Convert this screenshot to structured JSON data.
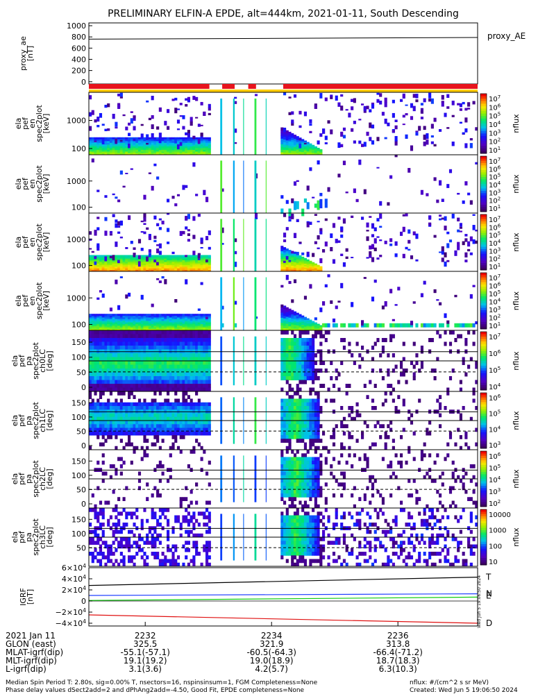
{
  "title": "PRELIMINARY ELFIN-A EPDE, alt=444km, 2021-01-11, South Descending",
  "colors": {
    "ae_line": "#000000",
    "status_red": "#e8141c",
    "status_yellow": "#ffcc00",
    "igrf_T": "#000000",
    "igrf_N": "#1f3fff",
    "igrf_E": "#11cc11",
    "igrf_D": "#e01010"
  },
  "footer": {
    "left_line1": "Median Spin Period T: 2.80s, sig=0.00% T, nsectors=16, nspinsinsum=1, FGM Completeness=None",
    "left_line2": "Phase delay values dSect2add=2 and dPhAng2add=-4.50, Good Fit, EPDE completeness=None",
    "right_line1": "nflux: #/(cm^2 s sr MeV)",
    "right_line2": "Created: Wed Jun  5 19:06:50 2024",
    "vertical": "Wed Jun  5 19:06:50 2024"
  },
  "chart_data": [
    {
      "id": "proxy_ae",
      "type": "line",
      "ylabel": "proxy_ae\n[nT]",
      "yticks": [
        "1000",
        "800",
        "600",
        "400",
        "200",
        "0"
      ],
      "ylim": [
        -40,
        1050
      ],
      "legend": "proxy_AE",
      "x_range": [
        0,
        1
      ],
      "series": [
        {
          "x": [
            0,
            1
          ],
          "y": [
            760,
            790
          ]
        }
      ]
    },
    {
      "id": "status_bar",
      "type": "table",
      "red_segments": [
        [
          0.0,
          0.31
        ],
        [
          0.343,
          0.375
        ],
        [
          0.41,
          0.43
        ],
        [
          0.5,
          1.0
        ]
      ],
      "yellow_band": true
    },
    {
      "id": "pef_en_1",
      "type": "heatmap",
      "ylabel": "ela\npef\nen\nspec2plot\n[keV]",
      "yticks": [
        "1000",
        "100"
      ],
      "colorbar": {
        "ticks": [
          "10^7",
          "10^6",
          "10^5",
          "10^4",
          "10^3",
          "10^2",
          "10^1"
        ],
        "label": "nflux"
      }
    },
    {
      "id": "pef_en_2",
      "type": "heatmap",
      "ylabel": "ela\npef\nen\nspec2plot\n[keV]",
      "yticks": [
        "1000",
        "100"
      ],
      "colorbar": {
        "ticks": [
          "10^7",
          "10^6",
          "10^5",
          "10^4",
          "10^3",
          "10^2",
          "10^1"
        ],
        "label": "nflux"
      }
    },
    {
      "id": "pef_en_3",
      "type": "heatmap",
      "ylabel": "ela\npef\nen\nspec2plot\n[keV]",
      "yticks": [
        "1000",
        "100"
      ],
      "colorbar": {
        "ticks": [
          "10^7",
          "10^6",
          "10^5",
          "10^4",
          "10^3",
          "10^2",
          "10^1"
        ],
        "label": "nflux"
      }
    },
    {
      "id": "pef_en_4",
      "type": "heatmap",
      "ylabel": "ela\npef\nen\nspec2plot\n[keV]",
      "yticks": [
        "1000",
        "100"
      ],
      "colorbar": {
        "ticks": [
          "10^7",
          "10^6",
          "10^5",
          "10^4",
          "10^3",
          "10^2",
          "10^1"
        ],
        "label": "nflux"
      }
    },
    {
      "id": "ch0",
      "type": "heatmap",
      "ylabel": "ela\npef\npa\nspec2plot\nch0LC\n[deg]",
      "yticks": [
        "150",
        "100",
        "50",
        "0"
      ],
      "colorbar": {
        "ticks": [
          "10^7",
          "10^6",
          "10^5",
          "10^4"
        ],
        "label": "nflux"
      }
    },
    {
      "id": "ch1",
      "type": "heatmap",
      "ylabel": "ela\npef\npa\nspec2plot\nch1LC\n[deg]",
      "yticks": [
        "150",
        "100",
        "50",
        "0"
      ],
      "colorbar": {
        "ticks": [
          "10^6",
          "10^5",
          "10^4",
          "10^3"
        ],
        "label": "nflux"
      }
    },
    {
      "id": "ch2",
      "type": "heatmap",
      "ylabel": "ela\npef\npa\nspec2plot\nch2LC\n[deg]",
      "yticks": [
        "150",
        "100",
        "50",
        "0"
      ],
      "colorbar": {
        "ticks": [
          "10^6",
          "10^5",
          "10^4",
          "10^3",
          "10^2"
        ],
        "label": "nflux"
      }
    },
    {
      "id": "ch3",
      "type": "heatmap",
      "ylabel": "ela\npef\npa\nspec2plot\nch3LC\n[deg]",
      "yticks": [
        "150",
        "100",
        "50"
      ],
      "colorbar": {
        "ticks": [
          "10000",
          "1000",
          "100",
          "10"
        ],
        "label": "nflux"
      }
    },
    {
      "id": "igrf",
      "type": "line",
      "ylabel": "IGRF\n[nT]",
      "yticks": [
        "6×10^4",
        "4×10^4",
        "2×10^4",
        "0",
        "−2×10^4",
        "−4×10^4"
      ],
      "ylim": [
        -45000,
        60000
      ],
      "x_range": [
        0,
        1
      ],
      "series": [
        {
          "name": "T",
          "x": [
            0,
            1
          ],
          "y": [
            28000,
            43000
          ]
        },
        {
          "name": "N",
          "x": [
            0,
            1
          ],
          "y": [
            10000,
            13000
          ]
        },
        {
          "name": "E",
          "x": [
            0,
            1
          ],
          "y": [
            1000,
            7000
          ]
        },
        {
          "name": "D",
          "x": [
            0,
            1
          ],
          "y": [
            -25000,
            -40000
          ]
        }
      ]
    },
    {
      "id": "orbit_table",
      "type": "table",
      "row_labels": [
        "2021 Jan 11",
        "GLON (east)",
        "MLAT-igrf(dip)",
        "MLT-igrf(dip)",
        "L-igrf(dip)"
      ],
      "columns": [
        {
          "tick": "2232",
          "values": [
            "325.5",
            "-55.1(-57.1)",
            "19.1(19.2)",
            "3.1(3.6)"
          ]
        },
        {
          "tick": "2234",
          "values": [
            "321.9",
            "-60.5(-64.3)",
            "19.0(18.9)",
            "4.2(5.7)"
          ]
        },
        {
          "tick": "2236",
          "values": [
            "313.8",
            "-66.4(-71.2)",
            "18.7(18.3)",
            "6.3(10.3)"
          ]
        }
      ]
    }
  ]
}
